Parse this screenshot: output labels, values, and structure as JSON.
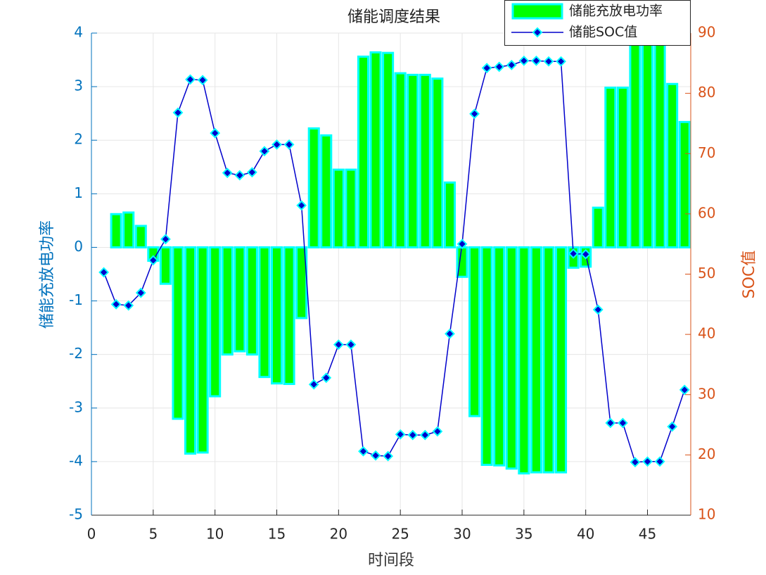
{
  "chart_data": {
    "type": "bar",
    "title": "储能调度结果",
    "xlabel": "时间段",
    "ylabel": "储能充放电功率",
    "y2label": "SOC值",
    "x": [
      1,
      2,
      3,
      4,
      5,
      6,
      7,
      8,
      9,
      10,
      11,
      12,
      13,
      14,
      15,
      16,
      17,
      18,
      19,
      20,
      21,
      22,
      23,
      24,
      25,
      26,
      27,
      28,
      29,
      30,
      31,
      32,
      33,
      34,
      35,
      36,
      37,
      38,
      39,
      40,
      41,
      42,
      43,
      44,
      45,
      46,
      47,
      48
    ],
    "series": [
      {
        "name": "储能充放电功率",
        "type": "bar",
        "color": "#00ff00",
        "edgecolor": "#00ffff",
        "values": [
          0,
          0.62,
          0.65,
          0.4,
          -0.25,
          -0.68,
          -3.2,
          -3.85,
          -3.83,
          -2.78,
          -2.0,
          -1.94,
          -2.0,
          -2.42,
          -2.54,
          -2.55,
          -1.32,
          2.22,
          2.09,
          1.45,
          1.45,
          3.56,
          3.64,
          3.63,
          3.25,
          3.22,
          3.22,
          3.15,
          1.21,
          -0.55,
          -3.15,
          -4.06,
          -4.07,
          -4.13,
          -4.22,
          -4.2,
          -4.2,
          -4.2,
          -0.38,
          -0.36,
          0.74,
          2.98,
          2.98,
          4.3,
          4.3,
          4.3,
          3.05,
          2.34
        ]
      },
      {
        "name": "储能SOC值",
        "type": "line",
        "axis": "y2",
        "color": "#0000cc",
        "edgecolor": "#00ffff",
        "values": [
          50.3,
          45.0,
          44.8,
          46.9,
          52.3,
          55.8,
          76.8,
          82.3,
          82.2,
          73.4,
          66.8,
          66.4,
          66.9,
          70.4,
          71.5,
          71.5,
          61.4,
          31.7,
          32.8,
          38.3,
          38.3,
          20.6,
          19.9,
          19.8,
          23.4,
          23.3,
          23.3,
          23.9,
          40.1,
          55.0,
          76.6,
          84.2,
          84.4,
          84.7,
          85.4,
          85.4,
          85.3,
          85.3,
          53.4,
          53.3,
          44.1,
          25.3,
          25.3,
          18.8,
          18.9,
          18.9,
          24.7,
          30.8
        ]
      }
    ],
    "xlim": [
      0,
      48.5
    ],
    "xticks": [
      0,
      5,
      10,
      15,
      20,
      25,
      30,
      35,
      40,
      45
    ],
    "ylim": [
      -5,
      4
    ],
    "yticks": [
      -5,
      -4,
      -3,
      -2,
      -1,
      0,
      1,
      2,
      3,
      4
    ],
    "y2lim": [
      10,
      90
    ],
    "y2ticks": [
      10,
      20,
      30,
      40,
      50,
      60,
      70,
      80,
      90
    ],
    "ycolor": "#0072bd",
    "y2color": "#d95319",
    "grid": true,
    "legend": "northeast"
  }
}
